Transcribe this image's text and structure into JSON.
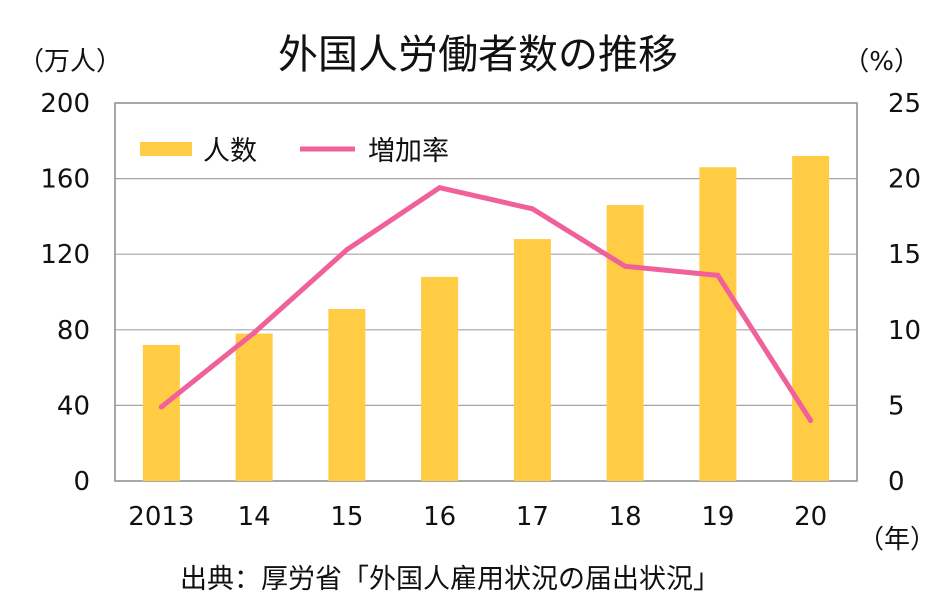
{
  "chart_data": {
    "type": "bar",
    "title": "外国人労働者数の推移",
    "left_unit": "（万人）",
    "right_unit": "（%）",
    "x_unit": "（年）",
    "source": "出典：厚労省「外国人雇用状況の届出状況」",
    "categories": [
      "2013",
      "14",
      "15",
      "16",
      "17",
      "18",
      "19",
      "20"
    ],
    "series": [
      {
        "name": "人数",
        "type": "bar",
        "axis": "left",
        "color": "#FFCC44",
        "values": [
          72,
          78,
          91,
          108,
          128,
          146,
          166,
          172
        ]
      },
      {
        "name": "増加率",
        "type": "line",
        "axis": "right",
        "color": "#F0609A",
        "values": [
          4.9,
          9.8,
          15.3,
          19.4,
          18.0,
          14.2,
          13.6,
          4.0
        ]
      }
    ],
    "ylim_left": [
      0,
      200
    ],
    "yticks_left": [
      0,
      40,
      80,
      120,
      160,
      200
    ],
    "ylim_right": [
      0,
      25
    ],
    "yticks_right": [
      0,
      5,
      10,
      15,
      20,
      25
    ],
    "grid": true,
    "legend": "top-left"
  }
}
